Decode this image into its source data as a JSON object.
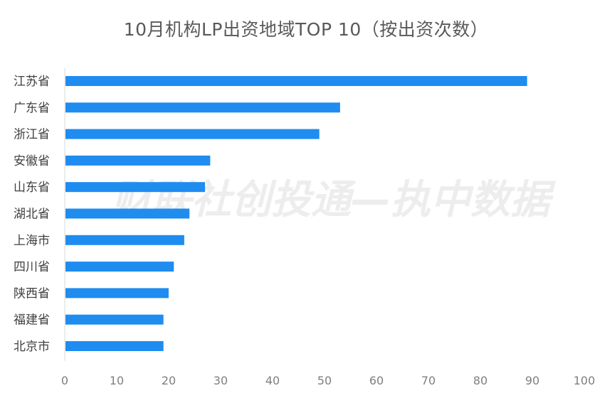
{
  "chart_data": {
    "type": "bar",
    "orientation": "horizontal",
    "title": "10月机构LP出资地域TOP 10（按出资次数）",
    "categories": [
      "江苏省",
      "广东省",
      "浙江省",
      "安徽省",
      "山东省",
      "湖北省",
      "上海市",
      "四川省",
      "陕西省",
      "福建省",
      "北京市"
    ],
    "values": [
      89,
      53,
      49,
      28,
      27,
      24,
      23,
      21,
      20,
      19,
      19
    ],
    "xlim": [
      0,
      100
    ],
    "xticks": [
      "0",
      "10",
      "20",
      "30",
      "40",
      "50",
      "60",
      "70",
      "80",
      "90",
      "100"
    ],
    "xlabel": "",
    "ylabel": "",
    "grid": false,
    "legend": "none",
    "bar_color": "#1f8cf0"
  },
  "watermark": "财联社创投通—执中数据"
}
